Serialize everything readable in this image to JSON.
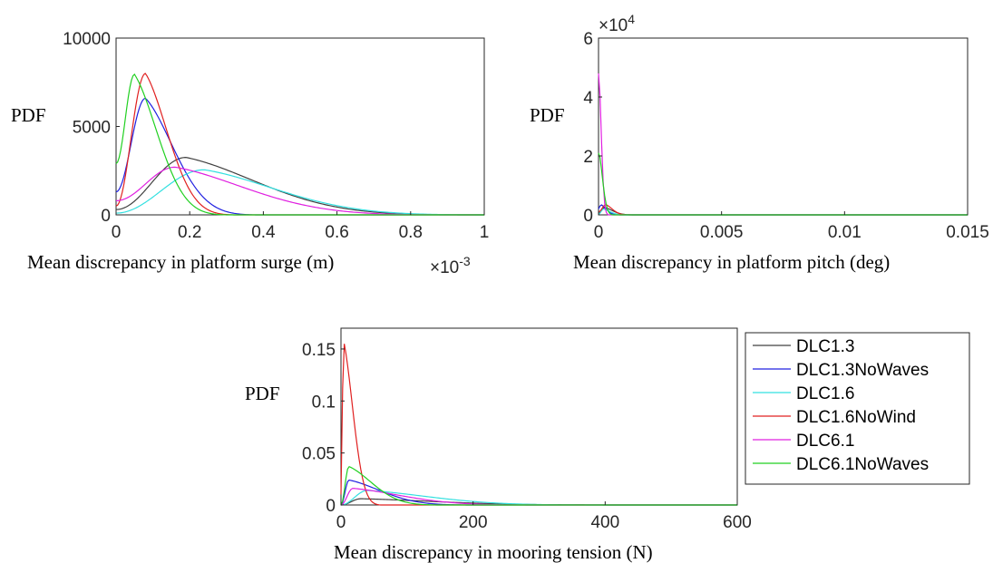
{
  "chart_data": [
    {
      "type": "line",
      "ylabel": "PDF",
      "xlabel": "Mean discrepancy in platform surge (m)",
      "x_exponent_base": "×10",
      "x_exponent_power": "-3",
      "xlim": [
        0,
        1
      ],
      "ylim": [
        0,
        10000
      ],
      "x_tick_values": [
        0,
        0.2,
        0.4,
        0.6,
        0.8,
        1
      ],
      "x_tick_labels": [
        "0",
        "0.2",
        "0.4",
        "0.6",
        "0.8",
        "1"
      ],
      "y_tick_values": [
        0,
        5000,
        10000
      ],
      "y_tick_labels": [
        "0",
        "5000",
        "10000"
      ],
      "series": [
        {
          "color": "#404040",
          "peak_x": 0.19,
          "peak_y": 3250,
          "x0_y": 300,
          "tail_end": 0.95
        },
        {
          "color": "#2020e0",
          "peak_x": 0.08,
          "peak_y": 6600,
          "x0_y": 1300,
          "tail_end": 0.38
        },
        {
          "color": "#33e0e0",
          "peak_x": 0.24,
          "peak_y": 2550,
          "x0_y": 100,
          "tail_end": 1.0
        },
        {
          "color": "#e02020",
          "peak_x": 0.08,
          "peak_y": 8000,
          "x0_y": 500,
          "tail_end": 0.32
        },
        {
          "color": "#e020e0",
          "peak_x": 0.16,
          "peak_y": 2700,
          "x0_y": 800,
          "tail_end": 0.9
        },
        {
          "color": "#20d020",
          "peak_x": 0.05,
          "peak_y": 7950,
          "x0_y": 2900,
          "tail_end": 0.3
        }
      ]
    },
    {
      "type": "line",
      "ylabel": "PDF",
      "xlabel": "Mean discrepancy in platform pitch (deg)",
      "y_exponent_base": "×10",
      "y_exponent_power": "4",
      "xlim": [
        0,
        0.015
      ],
      "ylim": [
        0,
        6
      ],
      "x_tick_values": [
        0,
        0.005,
        0.01,
        0.015
      ],
      "x_tick_labels": [
        "0",
        "0.005",
        "0.01",
        "0.015"
      ],
      "y_tick_values": [
        0,
        2,
        4,
        6
      ],
      "y_tick_labels": [
        "0",
        "2",
        "4",
        "6"
      ],
      "series": [
        {
          "color": "#404040",
          "peak_x": 0.00025,
          "peak_y": 0.25,
          "x0_y": 0.05,
          "tail_end": 0.0015
        },
        {
          "color": "#2020e0",
          "peak_x": 0.0001,
          "peak_y": 0.35,
          "x0_y": 0.2,
          "tail_end": 0.0009
        },
        {
          "color": "#33e0e0",
          "peak_x": 0.0002,
          "peak_y": 0.2,
          "x0_y": 0.02,
          "tail_end": 0.0012
        },
        {
          "color": "#e02020",
          "peak_x": 0.0003,
          "peak_y": 0.35,
          "x0_y": 0.1,
          "tail_end": 0.0013
        },
        {
          "color": "#e020e0",
          "peak_x": 1e-05,
          "peak_y": 5.0,
          "x0_y": 4.8,
          "tail_end": 0.0004
        },
        {
          "color": "#20d020",
          "peak_x": 1e-05,
          "peak_y": 2.2,
          "x0_y": 2.1,
          "tail_end": 0.0006
        }
      ]
    },
    {
      "type": "line",
      "ylabel": "PDF",
      "xlabel": "Mean discrepancy in mooring tension (N)",
      "xlim": [
        0,
        600
      ],
      "ylim": [
        0,
        0.17
      ],
      "x_tick_values": [
        0,
        200,
        400,
        600
      ],
      "x_tick_labels": [
        "0",
        "200",
        "400",
        "600"
      ],
      "y_tick_values": [
        0,
        0.05,
        0.1,
        0.15
      ],
      "y_tick_labels": [
        "0",
        "0.05",
        "0.1",
        "0.15"
      ],
      "legend_placement": "right-outside",
      "series": [
        {
          "name": "DLC1.3",
          "color": "#404040",
          "peak_x": 30,
          "peak_y": 0.006,
          "x0_y": 0.0,
          "tail_end": 450
        },
        {
          "name": "DLC1.3NoWaves",
          "color": "#2020e0",
          "peak_x": 12,
          "peak_y": 0.024,
          "x0_y": 0.0,
          "tail_end": 200
        },
        {
          "name": "DLC1.6",
          "color": "#33e0e0",
          "peak_x": 40,
          "peak_y": 0.014,
          "x0_y": 0.0,
          "tail_end": 400
        },
        {
          "name": "DLC1.6NoWind",
          "color": "#e02020",
          "peak_x": 4,
          "peak_y": 0.158,
          "x0_y": 0.01,
          "tail_end": 60
        },
        {
          "name": "DLC6.1",
          "color": "#e020e0",
          "peak_x": 18,
          "peak_y": 0.016,
          "x0_y": 0.0,
          "tail_end": 300
        },
        {
          "name": "DLC6.1NoWaves",
          "color": "#20d020",
          "peak_x": 12,
          "peak_y": 0.037,
          "x0_y": 0.0,
          "tail_end": 150
        }
      ]
    }
  ]
}
